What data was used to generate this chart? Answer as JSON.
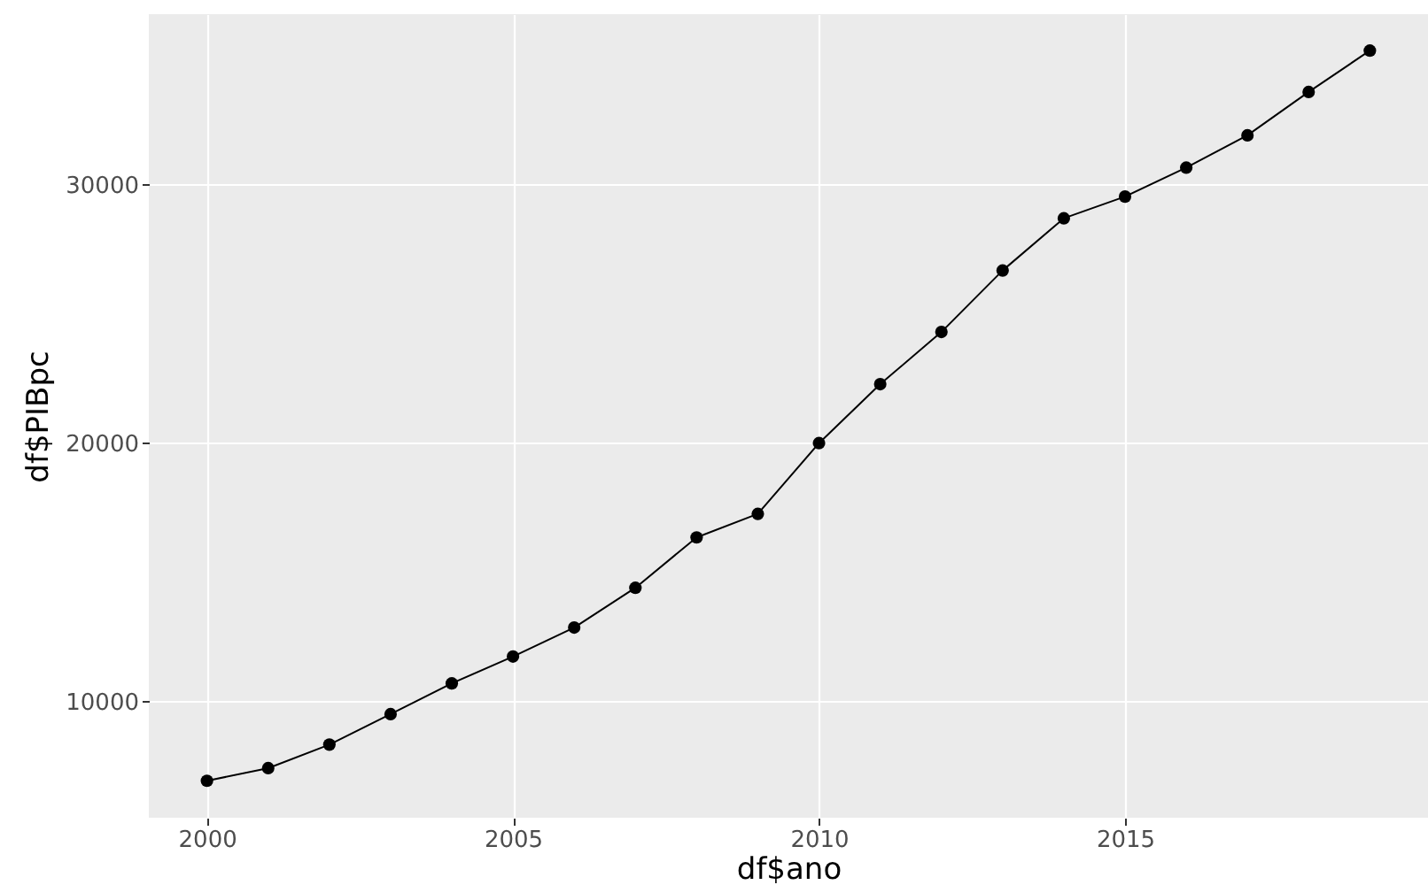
{
  "chart_data": {
    "type": "line",
    "xlabel": "df$ano",
    "ylabel": "df$PIBpc",
    "x": [
      2000,
      2001,
      2002,
      2003,
      2004,
      2005,
      2006,
      2007,
      2008,
      2009,
      2010,
      2011,
      2012,
      2013,
      2014,
      2015,
      2016,
      2017,
      2018,
      2019
    ],
    "series": [
      {
        "color": "#000000",
        "values": [
          6930,
          7420,
          8330,
          9510,
          10700,
          11740,
          12860,
          14400,
          16350,
          17260,
          20000,
          22280,
          24300,
          26680,
          28700,
          29540,
          30660,
          31910,
          33590,
          35190
        ]
      }
    ],
    "xlim": [
      1999.05,
      2019.95
    ],
    "xticks": [
      2000,
      2005,
      2010,
      2015
    ],
    "ylim": [
      5500,
      36600
    ],
    "yticks": [
      10000,
      20000,
      30000
    ],
    "grid": true,
    "marker": "circle",
    "line_style": "solid"
  }
}
